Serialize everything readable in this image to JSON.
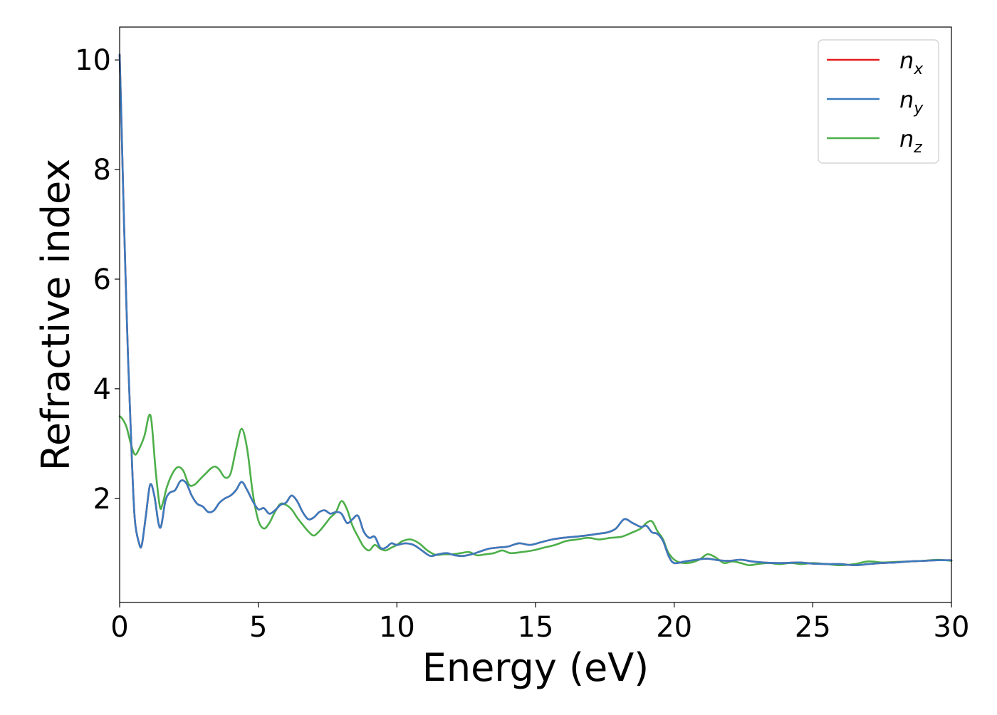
{
  "chart_data": {
    "type": "line",
    "xlabel": "Energy (eV)",
    "ylabel": "Refractive index",
    "xlim": [
      0,
      30
    ],
    "ylim": [
      0.1,
      10.6
    ],
    "xticks": [
      "0",
      "5",
      "10",
      "15",
      "20",
      "25",
      "30"
    ],
    "yticks": [
      "2",
      "4",
      "6",
      "8",
      "10"
    ],
    "grid": false,
    "legend_position": "top-right",
    "series": [
      {
        "name": "n",
        "subscript": "x",
        "color": "#e41a1c",
        "x": [
          0,
          0.05,
          0.15,
          0.3,
          0.45,
          0.55,
          0.7,
          0.8,
          0.95,
          1.1,
          1.25,
          1.4,
          1.5,
          1.65,
          1.8,
          2.0,
          2.2,
          2.4,
          2.6,
          2.8,
          3.0,
          3.2,
          3.4,
          3.6,
          3.8,
          4.0,
          4.2,
          4.4,
          4.6,
          4.8,
          5.0,
          5.2,
          5.4,
          5.6,
          5.8,
          6.0,
          6.2,
          6.4,
          6.6,
          6.8,
          7.0,
          7.2,
          7.4,
          7.6,
          7.8,
          8.0,
          8.2,
          8.4,
          8.6,
          8.8,
          9.0,
          9.2,
          9.4,
          9.6,
          9.8,
          10.0,
          10.3,
          10.6,
          10.9,
          11.2,
          11.5,
          11.8,
          12.1,
          12.4,
          12.7,
          13.0,
          13.3,
          13.6,
          14.0,
          14.4,
          14.8,
          15.2,
          15.6,
          16.0,
          16.4,
          16.8,
          17.2,
          17.6,
          17.9,
          18.2,
          18.5,
          18.8,
          19.0,
          19.2,
          19.4,
          19.6,
          19.8,
          20.0,
          20.4,
          20.8,
          21.2,
          21.6,
          22.0,
          22.4,
          22.8,
          23.2,
          23.6,
          24.0,
          24.5,
          25.0,
          25.5,
          26.0,
          26.5,
          27.0,
          27.5,
          28.0,
          28.5,
          29.0,
          29.5,
          30.0
        ],
        "y": [
          10.1,
          9.2,
          7.2,
          4.6,
          2.6,
          1.6,
          1.18,
          1.15,
          1.7,
          2.25,
          2.05,
          1.55,
          1.5,
          1.95,
          2.1,
          2.15,
          2.32,
          2.28,
          2.05,
          1.9,
          1.85,
          1.75,
          1.78,
          1.92,
          2.0,
          2.05,
          2.15,
          2.3,
          2.15,
          1.95,
          1.8,
          1.82,
          1.72,
          1.78,
          1.88,
          1.92,
          2.05,
          1.95,
          1.75,
          1.62,
          1.65,
          1.75,
          1.78,
          1.72,
          1.75,
          1.72,
          1.55,
          1.62,
          1.68,
          1.4,
          1.28,
          1.3,
          1.1,
          1.1,
          1.18,
          1.15,
          1.18,
          1.15,
          1.05,
          0.95,
          0.98,
          1.0,
          0.96,
          0.95,
          0.98,
          1.03,
          1.08,
          1.1,
          1.12,
          1.18,
          1.15,
          1.2,
          1.25,
          1.28,
          1.3,
          1.32,
          1.35,
          1.38,
          1.45,
          1.62,
          1.55,
          1.48,
          1.5,
          1.38,
          1.35,
          1.22,
          0.95,
          0.82,
          0.85,
          0.88,
          0.9,
          0.87,
          0.86,
          0.88,
          0.85,
          0.83,
          0.82,
          0.82,
          0.83,
          0.81,
          0.8,
          0.8,
          0.78,
          0.8,
          0.82,
          0.83,
          0.85,
          0.86,
          0.87,
          0.87
        ]
      },
      {
        "name": "n",
        "subscript": "y",
        "color": "#3a7bbf",
        "x": [
          0,
          0.05,
          0.15,
          0.3,
          0.45,
          0.55,
          0.7,
          0.8,
          0.95,
          1.1,
          1.25,
          1.4,
          1.5,
          1.65,
          1.8,
          2.0,
          2.2,
          2.4,
          2.6,
          2.8,
          3.0,
          3.2,
          3.4,
          3.6,
          3.8,
          4.0,
          4.2,
          4.4,
          4.6,
          4.8,
          5.0,
          5.2,
          5.4,
          5.6,
          5.8,
          6.0,
          6.2,
          6.4,
          6.6,
          6.8,
          7.0,
          7.2,
          7.4,
          7.6,
          7.8,
          8.0,
          8.2,
          8.4,
          8.6,
          8.8,
          9.0,
          9.2,
          9.4,
          9.6,
          9.8,
          10.0,
          10.3,
          10.6,
          10.9,
          11.2,
          11.5,
          11.8,
          12.1,
          12.4,
          12.7,
          13.0,
          13.3,
          13.6,
          14.0,
          14.4,
          14.8,
          15.2,
          15.6,
          16.0,
          16.4,
          16.8,
          17.2,
          17.6,
          17.9,
          18.2,
          18.5,
          18.8,
          19.0,
          19.2,
          19.4,
          19.6,
          19.8,
          20.0,
          20.4,
          20.8,
          21.2,
          21.6,
          22.0,
          22.4,
          22.8,
          23.2,
          23.6,
          24.0,
          24.5,
          25.0,
          25.5,
          26.0,
          26.5,
          27.0,
          27.5,
          28.0,
          28.5,
          29.0,
          29.5,
          30.0
        ],
        "y": [
          10.1,
          9.2,
          7.2,
          4.6,
          2.6,
          1.6,
          1.18,
          1.15,
          1.7,
          2.25,
          2.05,
          1.55,
          1.5,
          1.95,
          2.1,
          2.15,
          2.32,
          2.28,
          2.05,
          1.9,
          1.85,
          1.75,
          1.78,
          1.92,
          2.0,
          2.05,
          2.15,
          2.3,
          2.15,
          1.95,
          1.8,
          1.82,
          1.72,
          1.78,
          1.88,
          1.92,
          2.05,
          1.95,
          1.75,
          1.62,
          1.65,
          1.75,
          1.78,
          1.72,
          1.75,
          1.72,
          1.55,
          1.62,
          1.68,
          1.4,
          1.28,
          1.3,
          1.1,
          1.1,
          1.18,
          1.15,
          1.18,
          1.15,
          1.05,
          0.95,
          0.98,
          1.0,
          0.96,
          0.95,
          0.98,
          1.03,
          1.08,
          1.1,
          1.12,
          1.18,
          1.15,
          1.2,
          1.25,
          1.28,
          1.3,
          1.32,
          1.35,
          1.38,
          1.45,
          1.62,
          1.55,
          1.48,
          1.5,
          1.38,
          1.35,
          1.22,
          0.95,
          0.82,
          0.85,
          0.88,
          0.9,
          0.87,
          0.86,
          0.88,
          0.85,
          0.83,
          0.82,
          0.82,
          0.83,
          0.81,
          0.8,
          0.8,
          0.78,
          0.8,
          0.82,
          0.83,
          0.85,
          0.86,
          0.87,
          0.87
        ]
      },
      {
        "name": "n",
        "subscript": "z",
        "color": "#4daf4a",
        "x": [
          0,
          0.1,
          0.25,
          0.4,
          0.55,
          0.7,
          0.9,
          1.05,
          1.15,
          1.3,
          1.45,
          1.55,
          1.7,
          1.9,
          2.1,
          2.3,
          2.5,
          2.7,
          2.9,
          3.1,
          3.3,
          3.45,
          3.6,
          3.8,
          4.0,
          4.2,
          4.4,
          4.6,
          4.8,
          5.0,
          5.2,
          5.4,
          5.6,
          5.8,
          6.0,
          6.2,
          6.4,
          6.6,
          6.8,
          7.0,
          7.2,
          7.4,
          7.6,
          7.8,
          8.0,
          8.2,
          8.4,
          8.6,
          8.8,
          9.0,
          9.2,
          9.4,
          9.6,
          9.8,
          10.0,
          10.2,
          10.5,
          10.8,
          11.1,
          11.4,
          11.7,
          12.0,
          12.3,
          12.6,
          12.9,
          13.2,
          13.5,
          13.8,
          14.1,
          14.5,
          14.9,
          15.3,
          15.7,
          16.1,
          16.5,
          16.9,
          17.3,
          17.7,
          18.1,
          18.5,
          18.8,
          19.0,
          19.2,
          19.4,
          19.6,
          19.8,
          20.1,
          20.5,
          20.9,
          21.2,
          21.5,
          21.8,
          22.1,
          22.4,
          22.7,
          23.0,
          23.4,
          23.8,
          24.2,
          24.6,
          25.0,
          25.5,
          26.0,
          26.5,
          27.0,
          27.5,
          28.0,
          28.5,
          29.0,
          29.5,
          30.0
        ],
        "y": [
          3.5,
          3.45,
          3.3,
          3.0,
          2.8,
          2.9,
          3.15,
          3.5,
          3.4,
          2.5,
          1.85,
          1.9,
          2.2,
          2.45,
          2.57,
          2.5,
          2.25,
          2.25,
          2.35,
          2.45,
          2.55,
          2.58,
          2.52,
          2.38,
          2.45,
          2.9,
          3.27,
          2.9,
          2.1,
          1.6,
          1.45,
          1.55,
          1.75,
          1.9,
          1.88,
          1.8,
          1.65,
          1.52,
          1.4,
          1.32,
          1.4,
          1.52,
          1.65,
          1.75,
          1.95,
          1.8,
          1.5,
          1.3,
          1.12,
          1.05,
          1.15,
          1.08,
          1.05,
          1.1,
          1.15,
          1.22,
          1.25,
          1.18,
          1.05,
          0.97,
          0.98,
          0.98,
          1.0,
          1.02,
          0.96,
          0.98,
          1.0,
          1.05,
          1.0,
          1.02,
          1.05,
          1.1,
          1.15,
          1.22,
          1.25,
          1.28,
          1.25,
          1.28,
          1.3,
          1.38,
          1.45,
          1.55,
          1.58,
          1.4,
          1.25,
          1.0,
          0.85,
          0.82,
          0.88,
          0.98,
          0.92,
          0.82,
          0.85,
          0.82,
          0.78,
          0.8,
          0.82,
          0.8,
          0.82,
          0.8,
          0.82,
          0.8,
          0.78,
          0.8,
          0.85,
          0.83,
          0.84,
          0.85,
          0.86,
          0.88,
          0.86
        ]
      }
    ]
  }
}
